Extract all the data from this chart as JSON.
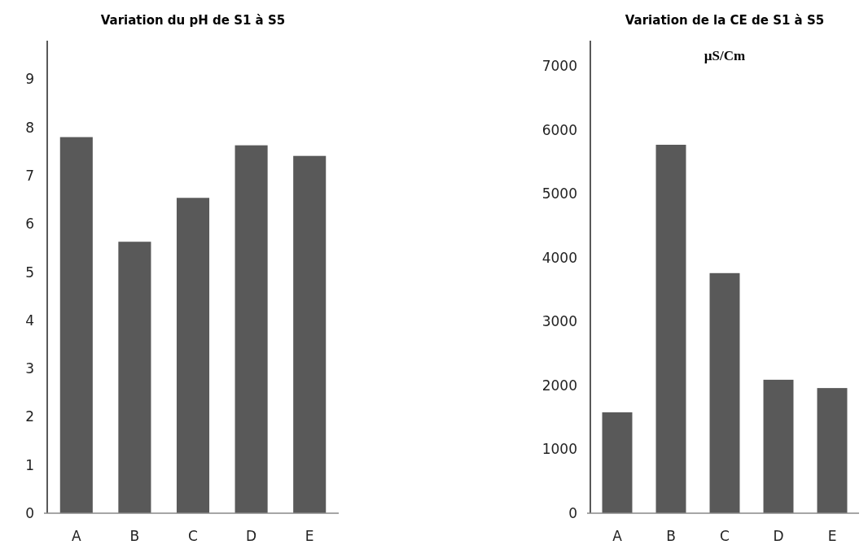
{
  "chart_data": [
    {
      "type": "bar",
      "title": "Variation  du pH de S1 à S5",
      "categories": [
        "A",
        "B",
        "C",
        "D",
        "E"
      ],
      "values": [
        7.8,
        5.63,
        6.54,
        7.63,
        7.41
      ],
      "color": "#595959",
      "ylim": [
        0,
        9.8
      ],
      "yticks": [
        0,
        1,
        2,
        3,
        4,
        5,
        6,
        7,
        8,
        9
      ],
      "grid": false
    },
    {
      "type": "bar",
      "title": "Variation  de la CE de S1 à S5",
      "subtitle": "µS/Cm",
      "categories": [
        "A",
        "B",
        "C",
        "D",
        "E"
      ],
      "values": [
        1580,
        5770,
        3760,
        2090,
        1960
      ],
      "color": "#595959",
      "ylim": [
        0,
        7400
      ],
      "yticks": [
        0,
        1000,
        2000,
        3000,
        4000,
        5000,
        6000,
        7000
      ],
      "grid": false
    }
  ]
}
